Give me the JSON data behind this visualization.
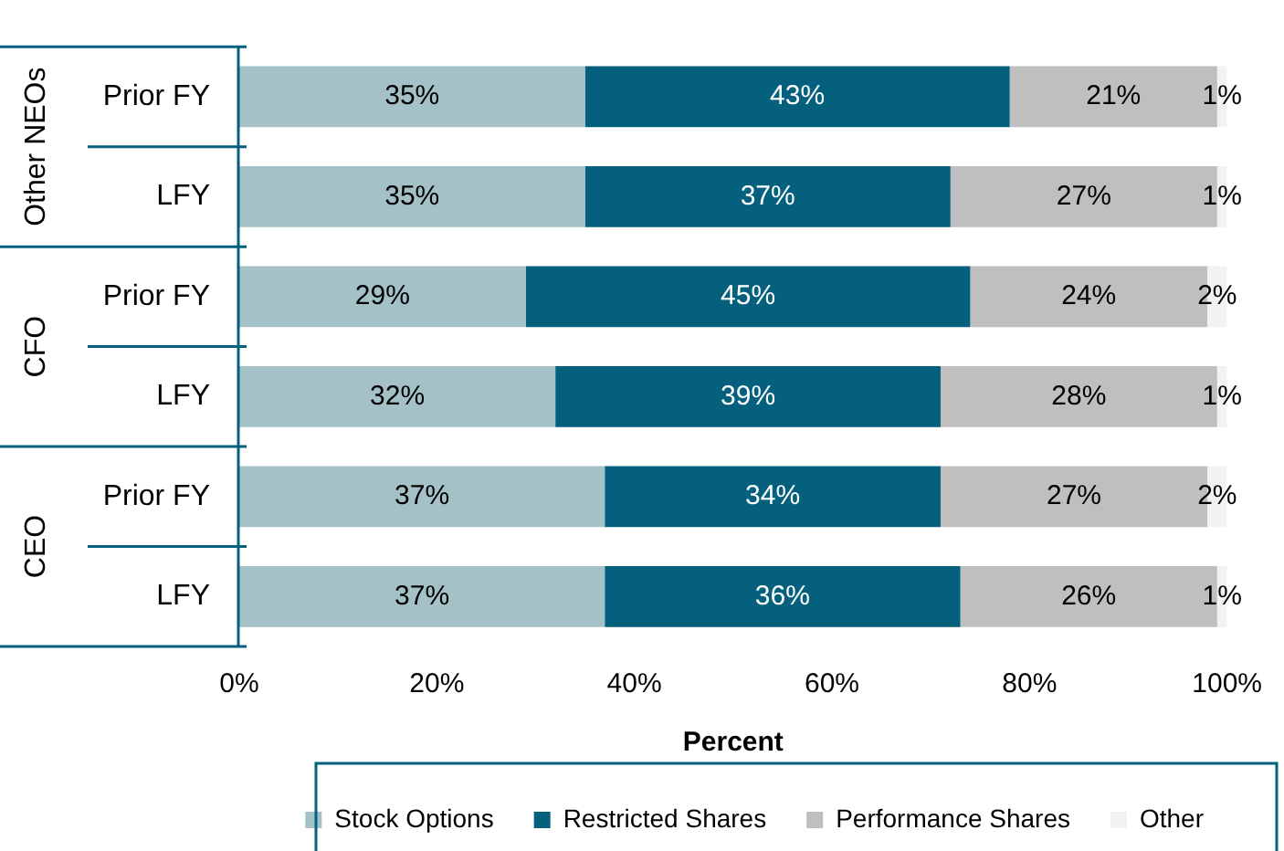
{
  "chart_data": {
    "type": "bar",
    "orientation": "horizontal",
    "stacked": true,
    "xlabel": "Percent",
    "categories": [
      "Prior FY",
      "LFY",
      "Prior FY",
      "LFY",
      "Prior FY",
      "LFY"
    ],
    "annotations": [
      "Other NEOs",
      "CFO",
      "CEO"
    ],
    "series": [
      {
        "name": "Stock Options",
        "color": "#a3c1c6",
        "values": [
          35,
          35,
          29,
          32,
          37,
          37
        ],
        "value_labels": [
          "35%",
          "35%",
          "29%",
          "32%",
          "37%",
          "37%"
        ]
      },
      {
        "name": "Restricted Shares",
        "color": "#05607e",
        "values": [
          43,
          37,
          45,
          39,
          34,
          36
        ],
        "value_labels": [
          "43%",
          "37%",
          "45%",
          "39%",
          "34%",
          "36%"
        ]
      },
      {
        "name": "Performance Shares",
        "color": "#bfbfbf",
        "values": [
          21,
          27,
          24,
          28,
          27,
          26
        ],
        "value_labels": [
          "21%",
          "27%",
          "24%",
          "28%",
          "27%",
          "26%"
        ]
      },
      {
        "name": "Other",
        "color": "#f2f2f2",
        "values": [
          1,
          1,
          2,
          1,
          2,
          1
        ],
        "value_labels": [
          "1%",
          "1%",
          "2%",
          "1%",
          "2%",
          "1%"
        ]
      }
    ],
    "xlim": [
      0,
      100
    ],
    "xticks": [
      {
        "value": 0,
        "label": "0%"
      },
      {
        "value": 20,
        "label": "20%"
      },
      {
        "value": 40,
        "label": "40%"
      },
      {
        "value": 60,
        "label": "60%"
      },
      {
        "value": 80,
        "label": "80%"
      },
      {
        "value": 100,
        "label": "100%"
      }
    ],
    "grid": false,
    "legend": "bottom"
  }
}
